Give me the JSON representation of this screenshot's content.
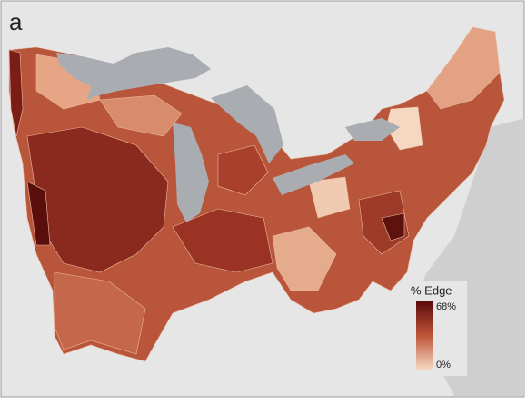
{
  "panel_label": "a",
  "legend": {
    "title": "% Edge",
    "max": {
      "value": 68,
      "label": "68%"
    },
    "min": {
      "value": 0,
      "label": "0%"
    }
  }
}
